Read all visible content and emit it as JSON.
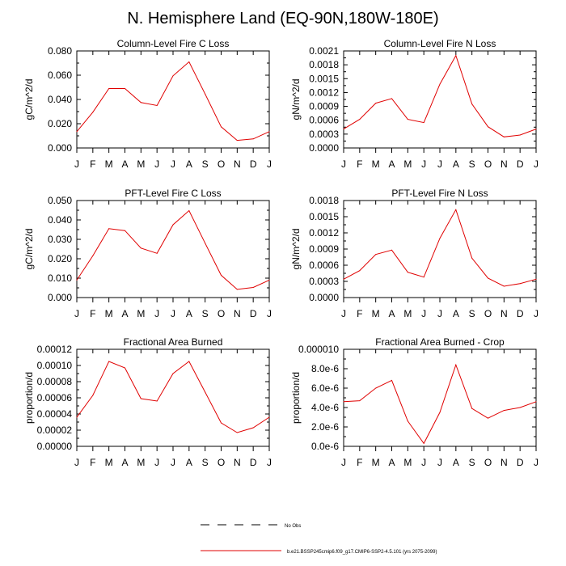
{
  "title": "N. Hemisphere Land (EQ-90N,180W-180E)",
  "legend": {
    "entries": [
      {
        "label": "No Obs",
        "style": "dashed",
        "color": "#000000"
      },
      {
        "label": "b.e21.BSSP245cmip6.f09_g17.CMIP6-SSP2-4.5.101 (yrs 2075-2099)",
        "style": "solid",
        "color": "#e00000"
      }
    ]
  },
  "chart_data": [
    {
      "type": "line",
      "title": "Column-Level Fire C Loss",
      "ylabel": "gC/m^2/d",
      "categories": [
        "J",
        "F",
        "M",
        "A",
        "M",
        "J",
        "J",
        "A",
        "S",
        "O",
        "N",
        "D",
        "J"
      ],
      "ylim": [
        0,
        0.08
      ],
      "yticks": [
        "0.000",
        "0.020",
        "0.040",
        "0.060",
        "0.080"
      ],
      "ytick_values": [
        0,
        0.02,
        0.04,
        0.06,
        0.08
      ],
      "series": [
        {
          "color": "#e00000",
          "values": [
            0.0135,
            0.0295,
            0.049,
            0.049,
            0.0375,
            0.035,
            0.0595,
            0.071,
            0.0445,
            0.0175,
            0.0063,
            0.0075,
            0.0135
          ]
        }
      ]
    },
    {
      "type": "line",
      "title": "Column-Level Fire N Loss",
      "ylabel": "gN/m^2/d",
      "categories": [
        "J",
        "F",
        "M",
        "A",
        "M",
        "J",
        "J",
        "A",
        "S",
        "O",
        "N",
        "D",
        "J"
      ],
      "ylim": [
        0,
        0.0021
      ],
      "yticks": [
        "0.0000",
        "0.0003",
        "0.0006",
        "0.0009",
        "0.0012",
        "0.0015",
        "0.0018",
        "0.0021"
      ],
      "ytick_values": [
        0,
        0.0003,
        0.0006,
        0.0009,
        0.0012,
        0.0015,
        0.0018,
        0.0021
      ],
      "series": [
        {
          "color": "#e00000",
          "values": [
            0.00041,
            0.00062,
            0.00097,
            0.00107,
            0.00062,
            0.00055,
            0.00138,
            0.002,
            0.00095,
            0.00046,
            0.00024,
            0.00028,
            0.00041
          ]
        }
      ]
    },
    {
      "type": "line",
      "title": "PFT-Level Fire C Loss",
      "ylabel": "gC/m^2/d",
      "categories": [
        "J",
        "F",
        "M",
        "A",
        "M",
        "J",
        "J",
        "A",
        "S",
        "O",
        "N",
        "D",
        "J"
      ],
      "ylim": [
        0,
        0.05
      ],
      "yticks": [
        "0.000",
        "0.010",
        "0.020",
        "0.030",
        "0.040",
        "0.050"
      ],
      "ytick_values": [
        0,
        0.01,
        0.02,
        0.03,
        0.04,
        0.05
      ],
      "series": [
        {
          "color": "#e00000",
          "values": [
            0.009,
            0.0215,
            0.0355,
            0.0345,
            0.0255,
            0.0228,
            0.0375,
            0.0448,
            0.028,
            0.0115,
            0.0042,
            0.0052,
            0.009
          ]
        }
      ]
    },
    {
      "type": "line",
      "title": "PFT-Level Fire N Loss",
      "ylabel": "gN/m^2/d",
      "categories": [
        "J",
        "F",
        "M",
        "A",
        "M",
        "J",
        "J",
        "A",
        "S",
        "O",
        "N",
        "D",
        "J"
      ],
      "ylim": [
        0,
        0.0018
      ],
      "yticks": [
        "0.0000",
        "0.0003",
        "0.0006",
        "0.0009",
        "0.0012",
        "0.0015",
        "0.0018"
      ],
      "ytick_values": [
        0,
        0.0003,
        0.0006,
        0.0009,
        0.0012,
        0.0015,
        0.0018
      ],
      "series": [
        {
          "color": "#e00000",
          "values": [
            0.00034,
            0.0005,
            0.0008,
            0.00088,
            0.00047,
            0.00038,
            0.0011,
            0.00163,
            0.00073,
            0.00036,
            0.00021,
            0.00026,
            0.00034
          ]
        }
      ]
    },
    {
      "type": "line",
      "title": "Fractional Area Burned",
      "ylabel": "proportion/d",
      "categories": [
        "J",
        "F",
        "M",
        "A",
        "M",
        "J",
        "J",
        "A",
        "S",
        "O",
        "N",
        "D",
        "J"
      ],
      "ylim": [
        0,
        0.00012
      ],
      "yticks": [
        "0.00000",
        "0.00002",
        "0.00004",
        "0.00006",
        "0.00008",
        "0.00010",
        "0.00012"
      ],
      "ytick_values": [
        0,
        2e-05,
        4e-05,
        6e-05,
        8e-05,
        0.0001,
        0.00012
      ],
      "series": [
        {
          "color": "#e00000",
          "values": [
            3.6e-05,
            6.3e-05,
            0.000105,
            9.7e-05,
            5.9e-05,
            5.6e-05,
            9e-05,
            0.000105,
            6.7e-05,
            2.9e-05,
            1.7e-05,
            2.3e-05,
            3.6e-05
          ]
        }
      ]
    },
    {
      "type": "line",
      "title": "Fractional Area Burned - Crop",
      "ylabel": "proportion/d",
      "categories": [
        "J",
        "F",
        "M",
        "A",
        "M",
        "J",
        "J",
        "A",
        "S",
        "O",
        "N",
        "D",
        "J"
      ],
      "ylim": [
        0,
        1e-05
      ],
      "yticks": [
        "0.0e-6",
        "2.0e-6",
        "4.0e-6",
        "6.0e-6",
        "8.0e-6",
        "0.000010"
      ],
      "ytick_values": [
        0,
        2e-06,
        4e-06,
        6e-06,
        8e-06,
        1e-05
      ],
      "series": [
        {
          "color": "#e00000",
          "values": [
            4.6e-06,
            4.7e-06,
            6e-06,
            6.8e-06,
            2.6e-06,
            3e-07,
            3.5e-06,
            8.4e-06,
            3.9e-06,
            2.9e-06,
            3.7e-06,
            4e-06,
            4.6e-06
          ]
        }
      ]
    }
  ]
}
